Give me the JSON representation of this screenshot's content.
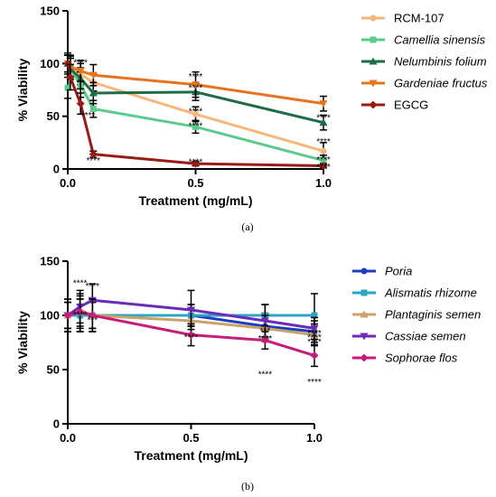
{
  "chart_data": [
    {
      "type": "line",
      "panel_label": "(a)",
      "xlabel": "Treatment (mg/mL)",
      "ylabel": "% Viability",
      "xlim": [
        0,
        1.0
      ],
      "ylim": [
        0,
        150
      ],
      "xticks": [
        "0.0",
        "0.5",
        "1.0"
      ],
      "yticks": [
        "0",
        "50",
        "100",
        "150"
      ],
      "legend_position": "right",
      "series": [
        {
          "name": "RCM-107",
          "italic": false,
          "color": "#f5b77c",
          "marker": "circle",
          "x": [
            0,
            0.01,
            0.05,
            0.1,
            0.5,
            1.0
          ],
          "y": [
            100,
            98,
            90,
            82,
            52,
            17
          ],
          "err": [
            8,
            10,
            10,
            8,
            7,
            8
          ]
        },
        {
          "name": "Camellia sinensis",
          "italic": true,
          "color": "#5dc98f",
          "marker": "square",
          "x": [
            0,
            0.01,
            0.05,
            0.1,
            0.5,
            1.0
          ],
          "y": [
            77,
            95,
            80,
            57,
            40,
            8
          ],
          "err": [
            10,
            10,
            12,
            8,
            6,
            5
          ]
        },
        {
          "name": "Nelumbinis folium",
          "italic": true,
          "color": "#1e6b46",
          "marker": "triangle",
          "x": [
            0,
            0.01,
            0.05,
            0.1,
            0.5,
            1.0
          ],
          "y": [
            100,
            95,
            86,
            72,
            73,
            44
          ],
          "err": [
            8,
            10,
            10,
            10,
            8,
            7
          ]
        },
        {
          "name": "Gardeniae fructus",
          "italic": true,
          "color": "#e8731c",
          "marker": "triangle-down",
          "x": [
            0,
            0.01,
            0.05,
            0.1,
            0.5,
            1.0
          ],
          "y": [
            100,
            97,
            93,
            89,
            80,
            62
          ],
          "err": [
            8,
            10,
            10,
            10,
            12,
            7
          ]
        },
        {
          "name": "EGCG",
          "italic": false,
          "color": "#9a1b14",
          "marker": "diamond",
          "x": [
            0,
            0.01,
            0.05,
            0.1,
            0.5,
            1.0
          ],
          "y": [
            100,
            87,
            62,
            14,
            5,
            3
          ],
          "err": [
            10,
            12,
            10,
            3,
            2,
            2
          ]
        }
      ],
      "annotations": [
        {
          "x": 0.05,
          "y": 98,
          "text": "****"
        },
        {
          "x": 0.08,
          "y": 48,
          "text": "****"
        },
        {
          "x": 0.1,
          "y": 5,
          "text": "****"
        },
        {
          "x": 0.5,
          "y": 85,
          "text": "****"
        },
        {
          "x": 0.5,
          "y": 74,
          "text": "****"
        },
        {
          "x": 0.5,
          "y": 52,
          "text": "****"
        },
        {
          "x": 0.5,
          "y": 38,
          "text": "****"
        },
        {
          "x": 0.5,
          "y": 4,
          "text": "****"
        },
        {
          "x": 1.0,
          "y": 46,
          "text": "****"
        },
        {
          "x": 1.0,
          "y": 23,
          "text": "****"
        },
        {
          "x": 1.0,
          "y": 6,
          "text": "****"
        },
        {
          "x": 1.0,
          "y": -1,
          "text": "****"
        }
      ]
    },
    {
      "type": "line",
      "panel_label": "(b)",
      "xlabel": "Treatment (mg/mL)",
      "ylabel": "% Viability",
      "xlim": [
        0,
        1.0
      ],
      "ylim": [
        0,
        150
      ],
      "xticks": [
        "0.0",
        "0.5",
        "1.0"
      ],
      "yticks": [
        "0",
        "50",
        "100",
        "150"
      ],
      "legend_position": "right",
      "series": [
        {
          "name": "Poria",
          "italic": true,
          "color": "#1c3fbf",
          "marker": "circle",
          "x": [
            0,
            0.05,
            0.1,
            0.5,
            0.8,
            1.0
          ],
          "y": [
            100,
            100,
            100,
            100,
            90,
            85
          ],
          "err": [
            15,
            15,
            15,
            10,
            12,
            10
          ]
        },
        {
          "name": "Alismatis rhizome",
          "italic": true,
          "color": "#2ea5c4",
          "marker": "square",
          "x": [
            0,
            0.05,
            0.1,
            0.5,
            0.8,
            1.0
          ],
          "y": [
            100,
            100,
            100,
            100,
            100,
            100
          ],
          "err": [
            12,
            15,
            12,
            10,
            10,
            20
          ]
        },
        {
          "name": "Plantaginis semen",
          "italic": true,
          "color": "#c9a36a",
          "marker": "triangle",
          "x": [
            0,
            0.05,
            0.1,
            0.5,
            0.8,
            1.0
          ],
          "y": [
            100,
            105,
            100,
            95,
            88,
            82
          ],
          "err": [
            12,
            15,
            12,
            12,
            12,
            10
          ]
        },
        {
          "name": "Cassiae semen",
          "italic": true,
          "color": "#6a2bb8",
          "marker": "triangle-down",
          "x": [
            0,
            0.05,
            0.1,
            0.5,
            0.8,
            1.0
          ],
          "y": [
            100,
            108,
            114,
            105,
            95,
            88
          ],
          "err": [
            12,
            15,
            15,
            18,
            15,
            10
          ]
        },
        {
          "name": "Sophorae flos",
          "italic": true,
          "color": "#c81c7a",
          "marker": "diamond",
          "x": [
            0,
            0.05,
            0.1,
            0.5,
            0.8,
            1.0
          ],
          "y": [
            100,
            103,
            100,
            82,
            77,
            63
          ],
          "err": [
            15,
            15,
            15,
            10,
            8,
            10
          ]
        }
      ],
      "annotations": [
        {
          "x": 0.05,
          "y": 127,
          "text": "****"
        },
        {
          "x": 0.1,
          "y": 124,
          "text": "****"
        },
        {
          "x": 0.05,
          "y": 98,
          "text": "****"
        },
        {
          "x": 0.1,
          "y": 93,
          "text": "***"
        },
        {
          "x": 0.5,
          "y": 77,
          "text": "****"
        },
        {
          "x": 0.8,
          "y": 83,
          "text": "***"
        },
        {
          "x": 0.8,
          "y": 76,
          "text": "****"
        },
        {
          "x": 0.8,
          "y": 43,
          "text": "****"
        },
        {
          "x": 1.0,
          "y": 81,
          "text": "****"
        },
        {
          "x": 1.0,
          "y": 77,
          "text": "****"
        },
        {
          "x": 1.0,
          "y": 73,
          "text": "****"
        },
        {
          "x": 1.0,
          "y": 36,
          "text": "****"
        }
      ]
    }
  ]
}
